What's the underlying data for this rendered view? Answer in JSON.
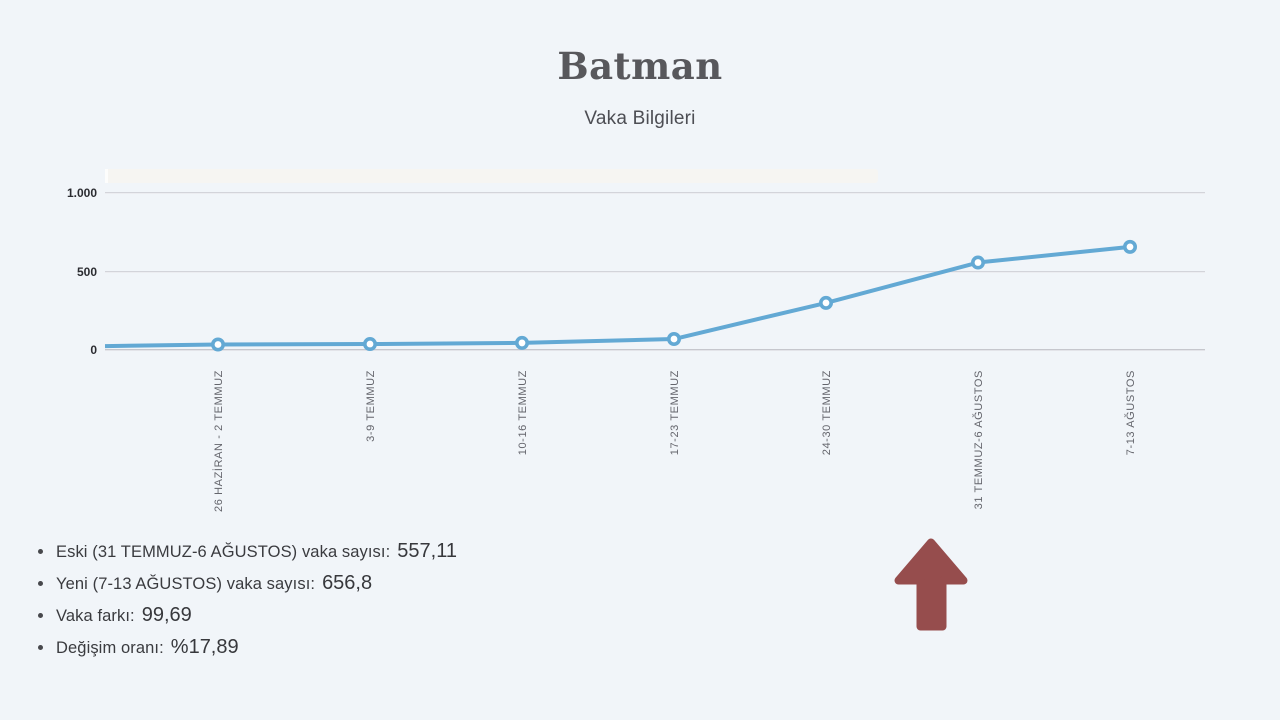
{
  "page": {
    "background": "#f1f5f9"
  },
  "header": {
    "title": "Batman",
    "subtitle": "Vaka Bilgileri"
  },
  "chart_data": {
    "type": "line",
    "title": "Batman",
    "subtitle": "Vaka Bilgileri",
    "categories": [
      "26 HAZİRAN - 2 TEMMUZ",
      "3-9 TEMMUZ",
      "10-16 TEMMUZ",
      "17-23 TEMMUZ",
      "24-30 TEMMUZ",
      "31 TEMMUZ-6 AĞUSTOS",
      "7-13 AĞUSTOS"
    ],
    "values": [
      35,
      38,
      45,
      70,
      300,
      557.11,
      656.8
    ],
    "lead_in_edge_value": 25,
    "xlabel": "",
    "ylabel": "",
    "ylim": [
      0,
      1000
    ],
    "yticks": [
      {
        "value": 0,
        "label": "0"
      },
      {
        "value": 500,
        "label": "500"
      },
      {
        "value": 1000,
        "label": "1.000"
      }
    ],
    "grid": true,
    "legend": "none",
    "line_color": "#63a9d4",
    "marker_fill": "#ffffff",
    "marker_style": "circle-open",
    "x_label_color": "#64656c",
    "y_label_color": "#2b2c31"
  },
  "notes": {
    "items": [
      {
        "label": "Eski (31 TEMMUZ-6 AĞUSTOS) vaka sayısı:",
        "value": "557,11"
      },
      {
        "label": "Yeni (7-13 AĞUSTOS) vaka sayısı:",
        "value": "656,8"
      },
      {
        "label": "Vaka farkı:",
        "value": "99,69"
      },
      {
        "label": "Değişim oranı:",
        "value": "%17,89"
      }
    ]
  },
  "annotation": {
    "up_arrow_color": "#964d4d"
  }
}
